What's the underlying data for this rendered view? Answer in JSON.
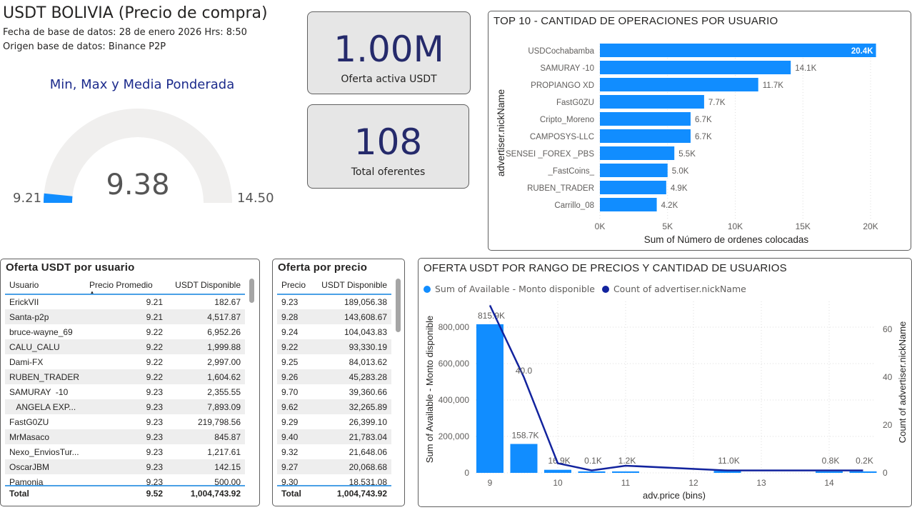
{
  "header": {
    "title": "USDT BOLIVIA (Precio de compra)",
    "date_line": "Fecha de base de datos: 28 de enero 2026 Hrs: 8:50",
    "source_line": "Origen base de datos: Binance P2P"
  },
  "gauge": {
    "title": "Min, Max y Media Ponderada",
    "value": 9.38,
    "value_label": "9.38",
    "min": 9.21,
    "min_label": "9.21",
    "max": 14.5,
    "max_label": "14.50",
    "fill_color": "#118DFF"
  },
  "kpis": [
    {
      "value": "1.00M",
      "label": "Oferta activa USDT"
    },
    {
      "value": "108",
      "label": "Total oferentes"
    }
  ],
  "top10": {
    "title": "TOP 10 - CANTIDAD DE OPERACIONES POR USUARIO",
    "ylabel": "advertiser.nickName",
    "xlabel": "Sum of Número de ordenes colocadas",
    "xticks": [
      "0K",
      "5K",
      "10K",
      "15K",
      "20K"
    ],
    "rows": [
      {
        "name": "USDCochabamba",
        "value": 20400,
        "label": "20.4K"
      },
      {
        "name": "SAMURAY -10",
        "value": 14100,
        "label": "14.1K"
      },
      {
        "name": "PROPIANGO XD",
        "value": 11700,
        "label": "11.7K"
      },
      {
        "name": "FastG0ZU",
        "value": 7700,
        "label": "7.7K"
      },
      {
        "name": "Cripto_Moreno",
        "value": 6700,
        "label": "6.7K"
      },
      {
        "name": "CAMPOSYS-LLC",
        "value": 6700,
        "label": "6.7K"
      },
      {
        "name": "SENSEI _FOREX _PBS",
        "value": 5500,
        "label": "5.5K"
      },
      {
        "name": "_FastCoins_",
        "value": 5000,
        "label": "5.0K"
      },
      {
        "name": "RUBEN_TRADER",
        "value": 4900,
        "label": "4.9K"
      },
      {
        "name": "Carrillo_08",
        "value": 4200,
        "label": "4.2K"
      }
    ]
  },
  "user_table": {
    "title": "Oferta USDT por usuario",
    "columns": [
      "Usuario",
      "Precio Promedio",
      "USDT Disponible"
    ],
    "rows": [
      [
        "ErickVII",
        "9.21",
        "182.67"
      ],
      [
        "Santa-p2p",
        "9.21",
        "4,517.87"
      ],
      [
        "bruce-wayne_69",
        "9.22",
        "6,952.26"
      ],
      [
        "CALU_CALU",
        "9.22",
        "1,999.88"
      ],
      [
        "Dami-FX",
        "9.22",
        "2,997.00"
      ],
      [
        "RUBEN_TRADER",
        "9.22",
        "1,604.62"
      ],
      [
        "SAMURAY  -10",
        "9.23",
        "2,355.55"
      ],
      [
        "   ANGELA EXP...",
        "9.23",
        "7,893.09"
      ],
      [
        "FastG0ZU",
        "9.23",
        "219,798.56"
      ],
      [
        "MrMasaco",
        "9.23",
        "845.87"
      ],
      [
        "Nexo_EnviosTur...",
        "9.23",
        "1,217.61"
      ],
      [
        "OscarJBM",
        "9.23",
        "142.15"
      ],
      [
        "Pamonia",
        "9.23",
        "500.00"
      ]
    ],
    "total": [
      "Total",
      "9.52",
      "1,004,743.92"
    ]
  },
  "price_table": {
    "title": "Oferta por precio",
    "columns": [
      "Precio",
      "USDT Disponible"
    ],
    "rows": [
      [
        "9.23",
        "189,056.38"
      ],
      [
        "9.28",
        "143,608.67"
      ],
      [
        "9.24",
        "104,043.83"
      ],
      [
        "9.22",
        "93,330.19"
      ],
      [
        "9.25",
        "84,013.62"
      ],
      [
        "9.26",
        "45,283.28"
      ],
      [
        "9.70",
        "39,360.66"
      ],
      [
        "9.62",
        "32,265.89"
      ],
      [
        "9.29",
        "26,399.10"
      ],
      [
        "9.40",
        "21,783.04"
      ],
      [
        "9.32",
        "21,648.06"
      ],
      [
        "9.27",
        "20,068.68"
      ],
      [
        "9.30",
        "18,531.08"
      ]
    ],
    "total": [
      "Total",
      "1,004,743.92"
    ]
  },
  "chart_data": {
    "type": "bar",
    "title": "OFERTA USDT POR RANGO DE PRECIOS Y CANTIDAD DE USUARIOS",
    "xlabel": "adv.price (bins)",
    "ylabel": "Sum of Available - Monto disponible",
    "y2label": "Count of advertiser.nickName",
    "legend": [
      "Sum of Available - Monto disponible",
      "Count of advertiser.nickName"
    ],
    "legend_position": "top-left",
    "xticks": [
      "9",
      "10",
      "11",
      "12",
      "13",
      "14"
    ],
    "xlim": [
      8.75,
      14.75
    ],
    "yticks": [
      "0",
      "200,000",
      "400,000",
      "600,000",
      "800,000"
    ],
    "ylim": [
      0,
      900000
    ],
    "y2ticks": [
      "0",
      "20",
      "40",
      "60"
    ],
    "y2lim": [
      0,
      67
    ],
    "bars": [
      {
        "x": 9,
        "value": 815900,
        "label": "815.9K"
      },
      {
        "x": 9.5,
        "value": 158700,
        "label": "158.7K"
      },
      {
        "x": 10,
        "value": 16900,
        "label": "16.9K"
      },
      {
        "x": 10.5,
        "value": 100,
        "label": "0.1K"
      },
      {
        "x": 11,
        "value": 1200,
        "label": "1.2K"
      },
      {
        "x": 12.5,
        "value": 11000,
        "label": "11.0K"
      },
      {
        "x": 14,
        "value": 800,
        "label": "0.8K"
      },
      {
        "x": 14.5,
        "value": 200,
        "label": "0.2K"
      }
    ],
    "line": [
      {
        "x": 9,
        "value": 70
      },
      {
        "x": 9.5,
        "value": 40,
        "label": "40.0"
      },
      {
        "x": 10,
        "value": 4
      },
      {
        "x": 10.5,
        "value": 1
      },
      {
        "x": 11,
        "value": 3
      },
      {
        "x": 12.5,
        "value": 1
      },
      {
        "x": 14,
        "value": 1
      },
      {
        "x": 14.5,
        "value": 1
      }
    ],
    "colors": {
      "bar": "#118DFF",
      "line": "#12239E"
    }
  }
}
